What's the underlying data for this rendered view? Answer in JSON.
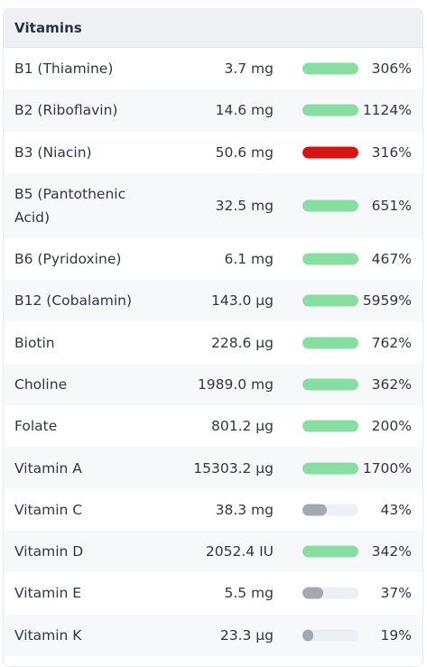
{
  "panel": {
    "title": "Vitamins"
  },
  "colors": {
    "good": "#86dfa1",
    "excess": "#d81313",
    "low": "#a3a8b1",
    "track": "#eceff3"
  },
  "rows": [
    {
      "name": "B1 (Thiamine)",
      "amount": "3.7 mg",
      "percent_label": "306%",
      "fill_fraction": 1.0,
      "status": "good"
    },
    {
      "name": "B2 (Riboflavin)",
      "amount": "14.6 mg",
      "percent_label": "1124%",
      "fill_fraction": 1.0,
      "status": "good"
    },
    {
      "name": "B3 (Niacin)",
      "amount": "50.6 mg",
      "percent_label": "316%",
      "fill_fraction": 1.0,
      "status": "excess"
    },
    {
      "name": "B5 (Pantothenic Acid)",
      "amount": "32.5 mg",
      "percent_label": "651%",
      "fill_fraction": 1.0,
      "status": "good"
    },
    {
      "name": "B6 (Pyridoxine)",
      "amount": "6.1 mg",
      "percent_label": "467%",
      "fill_fraction": 1.0,
      "status": "good"
    },
    {
      "name": "B12 (Cobalamin)",
      "amount": "143.0 µg",
      "percent_label": "5959%",
      "fill_fraction": 1.0,
      "status": "good"
    },
    {
      "name": "Biotin",
      "amount": "228.6 µg",
      "percent_label": "762%",
      "fill_fraction": 1.0,
      "status": "good"
    },
    {
      "name": "Choline",
      "amount": "1989.0 mg",
      "percent_label": "362%",
      "fill_fraction": 1.0,
      "status": "good"
    },
    {
      "name": "Folate",
      "amount": "801.2 µg",
      "percent_label": "200%",
      "fill_fraction": 1.0,
      "status": "good"
    },
    {
      "name": "Vitamin A",
      "amount": "15303.2 µg",
      "percent_label": "1700%",
      "fill_fraction": 1.0,
      "status": "good"
    },
    {
      "name": "Vitamin C",
      "amount": "38.3 mg",
      "percent_label": "43%",
      "fill_fraction": 0.43,
      "status": "low"
    },
    {
      "name": "Vitamin D",
      "amount": "2052.4 IU",
      "percent_label": "342%",
      "fill_fraction": 1.0,
      "status": "good"
    },
    {
      "name": "Vitamin E",
      "amount": "5.5 mg",
      "percent_label": "37%",
      "fill_fraction": 0.37,
      "status": "low"
    },
    {
      "name": "Vitamin K",
      "amount": "23.3 µg",
      "percent_label": "19%",
      "fill_fraction": 0.19,
      "status": "low"
    }
  ]
}
